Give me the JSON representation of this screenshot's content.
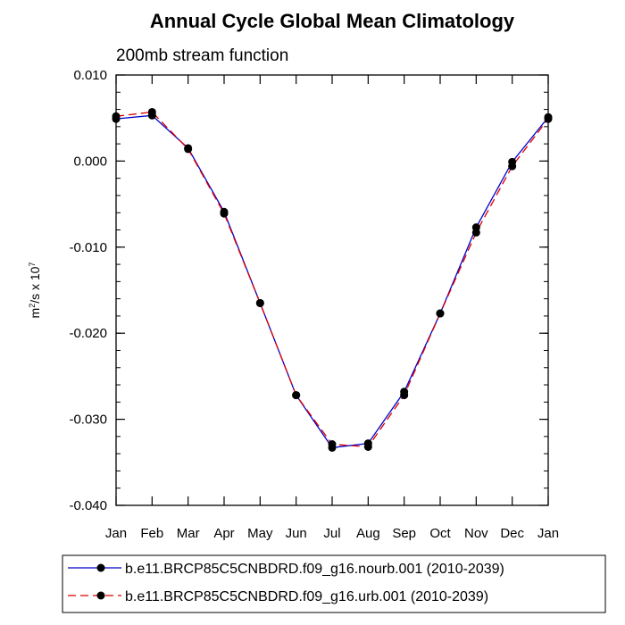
{
  "chart_data": {
    "type": "line",
    "title": "Annual Cycle Global Mean Climatology",
    "subtitle": "200mb stream function",
    "ylabel_base": "m",
    "ylabel_sup1": "2",
    "ylabel_mid": "/s x 10",
    "ylabel_sup2": "7",
    "ylim": [
      -0.04,
      0.01
    ],
    "yticks": [
      0.01,
      0.0,
      -0.01,
      -0.02,
      -0.03,
      -0.04
    ],
    "ytick_labels": [
      "0.010",
      "0.000",
      "-0.010",
      "-0.020",
      "-0.030",
      "-0.040"
    ],
    "categories": [
      "Jan",
      "Feb",
      "Mar",
      "Apr",
      "May",
      "Jun",
      "Jul",
      "Aug",
      "Sep",
      "Oct",
      "Nov",
      "Dec",
      "Jan"
    ],
    "series": [
      {
        "name": "b.e11.BRCP85C5CNBDRD.f09_g16.nourb.001 (2010-2039)",
        "color": "#0000cc",
        "dash": "solid",
        "values": [
          0.0049,
          0.0053,
          0.0015,
          -0.0059,
          -0.0165,
          -0.0272,
          -0.0333,
          -0.0328,
          -0.0268,
          -0.0177,
          -0.0077,
          -0.0001,
          0.0051
        ]
      },
      {
        "name": "b.e11.BRCP85C5CNBDRD.f09_g16.urb.001 (2010-2039)",
        "color": "#dd0000",
        "dash": "dashed",
        "values": [
          0.0052,
          0.0057,
          0.0014,
          -0.0061,
          -0.0165,
          -0.0272,
          -0.0329,
          -0.0332,
          -0.0272,
          -0.0177,
          -0.0083,
          -0.0006,
          0.0049
        ]
      }
    ]
  }
}
